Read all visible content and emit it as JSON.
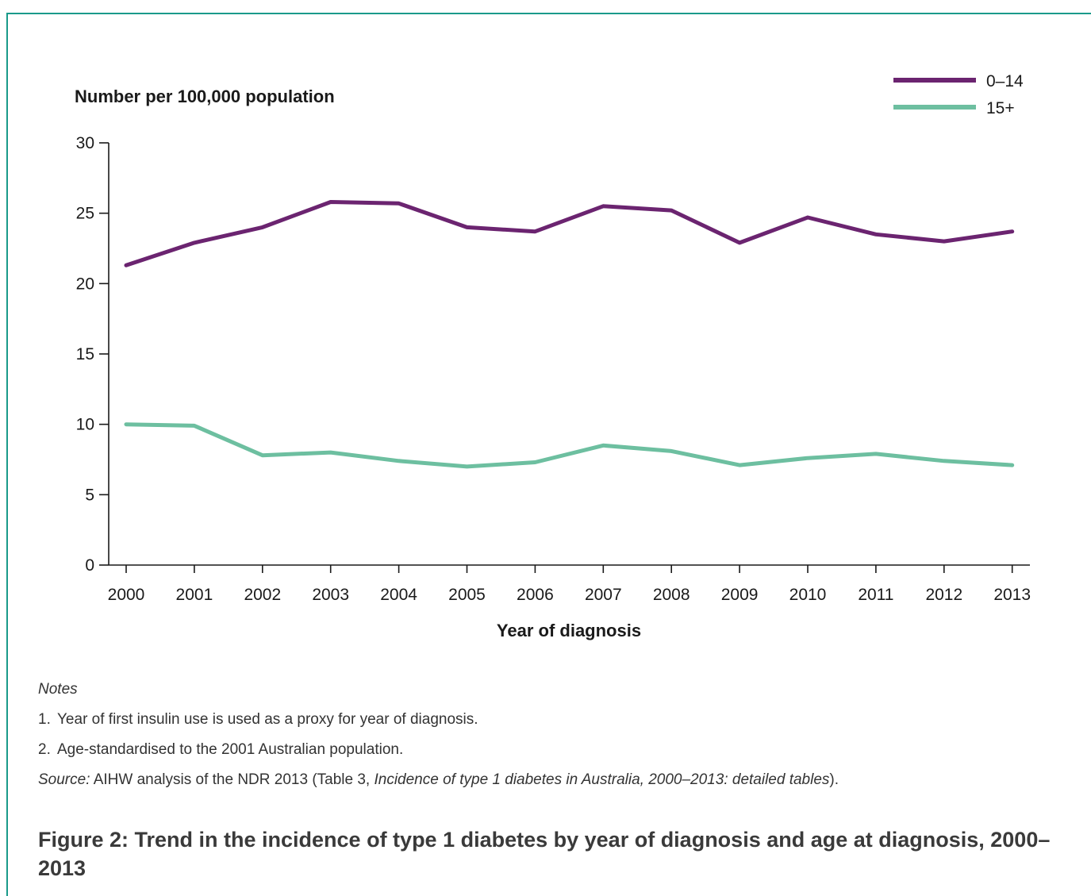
{
  "chart_data": {
    "type": "line",
    "ylabel": "Number per 100,000 population",
    "xlabel": "Year of diagnosis",
    "ylim": [
      0,
      30
    ],
    "yticks": [
      "0",
      "5",
      "10",
      "15",
      "20",
      "25",
      "30"
    ],
    "categories": [
      "2000",
      "2001",
      "2002",
      "2003",
      "2004",
      "2005",
      "2006",
      "2007",
      "2008",
      "2009",
      "2010",
      "2011",
      "2012",
      "2013"
    ],
    "grid": false,
    "legend_position": "top-right",
    "series": [
      {
        "name": "0–14",
        "color": "#6b2470",
        "values": [
          21.3,
          22.9,
          24.0,
          25.8,
          25.7,
          24.0,
          23.7,
          25.5,
          25.2,
          22.9,
          24.7,
          23.5,
          23.0,
          23.7
        ]
      },
      {
        "name": "15+",
        "color": "#6dbfa0",
        "values": [
          10.0,
          9.9,
          7.8,
          8.0,
          7.4,
          7.0,
          7.3,
          8.5,
          8.1,
          7.1,
          7.6,
          7.9,
          7.4,
          7.1
        ]
      }
    ]
  },
  "notes": {
    "heading": "Notes",
    "items": [
      {
        "num": "1.",
        "text": "Year of first insulin use is used as a proxy for year of diagnosis."
      },
      {
        "num": "2.",
        "text": "Age-standardised to the 2001 Australian population."
      }
    ],
    "source_label": "Source:",
    "source_text_1": " AIHW analysis of the NDR 2013 (Table 3, ",
    "source_title": "Incidence of type 1 diabetes in Australia, 2000–2013: detailed tables",
    "source_text_2": ")."
  },
  "caption": "Figure 2: Trend in the incidence of type 1 diabetes by year of diagnosis and age at diagnosis, 2000–2013"
}
